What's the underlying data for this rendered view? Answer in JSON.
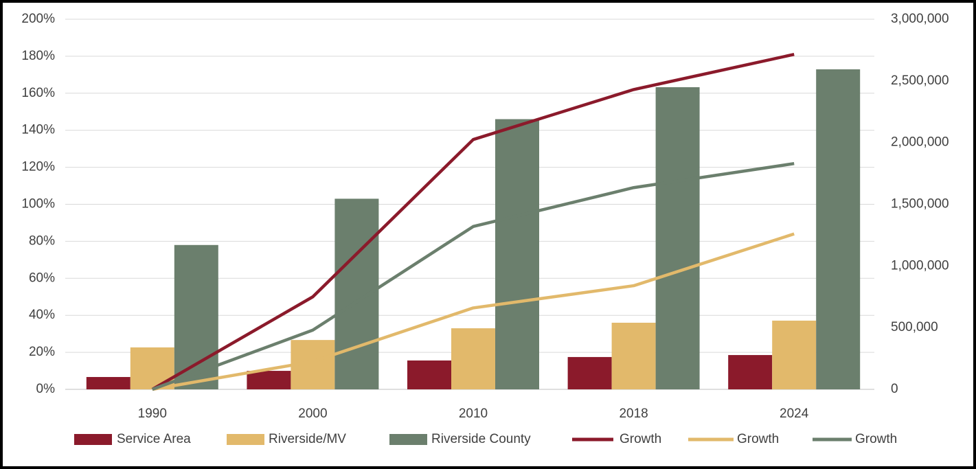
{
  "chart_data": {
    "type": "combo",
    "categories": [
      "1990",
      "2000",
      "2010",
      "2018",
      "2024"
    ],
    "series": [
      {
        "name": "Service Area",
        "type": "bar",
        "axis": "y2",
        "color": "#8b1a2b",
        "values": [
          100000,
          150000,
          234000,
          262000,
          278000
        ]
      },
      {
        "name": "Riverside/MV",
        "type": "bar",
        "axis": "y2",
        "color": "#e2b96b",
        "values": [
          340000,
          400000,
          495000,
          540000,
          557000
        ]
      },
      {
        "name": "Riverside County",
        "type": "bar",
        "axis": "y2",
        "color": "#6b7f6d",
        "values": [
          1170000,
          1545000,
          2190000,
          2449000,
          2594000
        ]
      },
      {
        "name": "Growth",
        "type": "line",
        "axis": "y",
        "color": "#8b1a2b",
        "values": [
          0,
          50,
          135,
          162,
          181
        ]
      },
      {
        "name": "Growth",
        "type": "line",
        "axis": "y",
        "color": "#e2b96b",
        "values": [
          0,
          15,
          44,
          56,
          84
        ]
      },
      {
        "name": "Growth",
        "type": "line",
        "axis": "y",
        "color": "#6b7f6d",
        "values": [
          0,
          32,
          88,
          109,
          122
        ]
      }
    ],
    "ylim": [
      0,
      200
    ],
    "yticks": [
      {
        "value": 0,
        "label": "0%"
      },
      {
        "value": 20,
        "label": "20%"
      },
      {
        "value": 40,
        "label": "40%"
      },
      {
        "value": 60,
        "label": "60%"
      },
      {
        "value": 80,
        "label": "80%"
      },
      {
        "value": 100,
        "label": "100%"
      },
      {
        "value": 120,
        "label": "120%"
      },
      {
        "value": 140,
        "label": "140%"
      },
      {
        "value": 160,
        "label": "160%"
      },
      {
        "value": 180,
        "label": "180%"
      },
      {
        "value": 200,
        "label": "200%"
      }
    ],
    "y2lim": [
      0,
      3000000
    ],
    "y2ticks": [
      0,
      {
        "value": 500000,
        "label": "500,000"
      },
      {
        "value": 1000000,
        "label": "1,000,000"
      },
      {
        "value": 1500000,
        "label": "1,500,000"
      },
      {
        "value": 2000000,
        "label": "2,000,000"
      },
      {
        "value": 2500000,
        "label": "2,500,000"
      },
      {
        "value": 3000000,
        "label": "3,000,000"
      }
    ],
    "grid": true,
    "legend": "bottom"
  }
}
